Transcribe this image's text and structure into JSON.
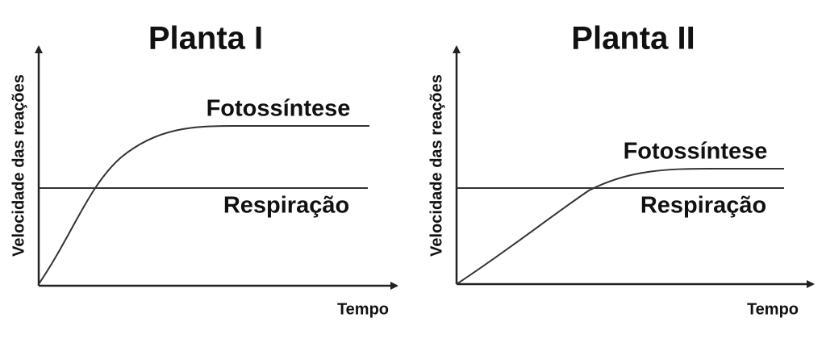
{
  "panels": [
    {
      "title": "Planta I",
      "y_label": "Velocidade das reações",
      "x_label": "Tempo",
      "curve_label": "Fotossíntese",
      "line_label": "Respiração"
    },
    {
      "title": "Planta II",
      "y_label": "Velocidade das reações",
      "x_label": "Tempo",
      "curve_label": "Fotossíntese",
      "line_label": "Respiração"
    }
  ]
}
